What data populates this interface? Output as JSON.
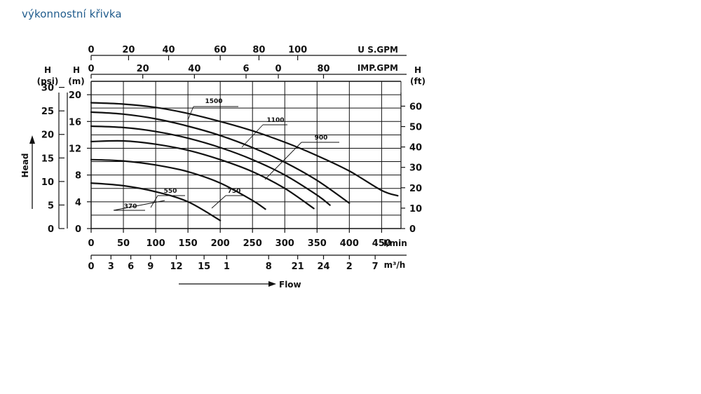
{
  "page": {
    "title": "výkonnostní křivka"
  },
  "colors": {
    "title": "#1f5b8c",
    "ink": "#111111",
    "grid": "#111111"
  },
  "chart_data": {
    "type": "line",
    "title": "",
    "grid": true,
    "x_axes": {
      "lmin": {
        "unit": "l/min",
        "range": [
          0,
          480
        ],
        "ticks": [
          0,
          50,
          100,
          150,
          200,
          250,
          300,
          350,
          400,
          450
        ],
        "tick_labels": [
          "0",
          "50",
          "100",
          "150",
          "200",
          "250",
          "300",
          "350",
          "400",
          "450"
        ]
      },
      "m3h": {
        "unit": "m³/h",
        "ticks": [
          0,
          30.7,
          61.5,
          92,
          132,
          175,
          210,
          275,
          320,
          360,
          400,
          440
        ],
        "tick_labels": [
          "0",
          "3",
          "6",
          "9",
          "12",
          "15",
          "1",
          "8",
          "21",
          "24",
          "2",
          "7"
        ]
      },
      "usgpm": {
        "unit": "U S.GPM",
        "ticks": [
          0,
          58,
          120,
          200,
          260,
          320
        ],
        "tick_labels": [
          "0",
          "20",
          "40",
          "60",
          "80",
          "100"
        ]
      },
      "impgpm": {
        "unit": "IMP.GPM",
        "ticks": [
          0,
          80,
          160,
          240,
          290,
          360
        ],
        "tick_labels": [
          "0",
          "20",
          "40",
          "6",
          "0",
          "80"
        ]
      }
    },
    "y_axes": {
      "psi": {
        "label": "H",
        "unit": "(psi)",
        "ticks": [
          0,
          5,
          10,
          15,
          20,
          25,
          30
        ],
        "tick_labels": [
          "0",
          "5",
          "10",
          "15",
          "20",
          "25",
          "30"
        ]
      },
      "m": {
        "label": "H",
        "unit": "(m)",
        "range": [
          0,
          22
        ],
        "ticks": [
          0,
          4,
          8,
          12,
          16,
          20
        ],
        "tick_labels": [
          "0",
          "4",
          "8",
          "12",
          "16",
          "20"
        ]
      },
      "ft": {
        "label": "H",
        "unit": "(ft)",
        "ticks": [
          0,
          10,
          20,
          30,
          40,
          50,
          60
        ],
        "tick_labels": [
          "0",
          "10",
          "20",
          "30",
          "40",
          "50",
          "60"
        ]
      }
    },
    "head_label": "Head",
    "flow_label": "Flow",
    "series": [
      {
        "name": "1500",
        "x": [
          0,
          50,
          100,
          150,
          200,
          250,
          300,
          350,
          400,
          450,
          475
        ],
        "y": [
          18.8,
          18.6,
          18.1,
          17.2,
          16.0,
          14.6,
          12.9,
          10.9,
          8.6,
          5.7,
          4.9
        ]
      },
      {
        "name": "1100",
        "x": [
          0,
          50,
          100,
          150,
          200,
          250,
          300,
          350,
          400
        ],
        "y": [
          17.4,
          17.1,
          16.4,
          15.3,
          13.9,
          12.1,
          9.9,
          7.2,
          3.8
        ]
      },
      {
        "name": "900",
        "x": [
          0,
          50,
          100,
          150,
          200,
          250,
          300,
          350,
          370
        ],
        "y": [
          15.3,
          15.1,
          14.5,
          13.5,
          12.1,
          10.3,
          8.0,
          5.0,
          3.5
        ]
      },
      {
        "name": "750",
        "x": [
          0,
          50,
          100,
          150,
          200,
          250,
          300,
          345
        ],
        "y": [
          13.0,
          13.1,
          12.6,
          11.7,
          10.3,
          8.5,
          6.0,
          3.0
        ]
      },
      {
        "name": "550",
        "x": [
          0,
          50,
          100,
          150,
          200,
          250,
          270
        ],
        "y": [
          10.3,
          10.1,
          9.5,
          8.5,
          6.8,
          4.2,
          2.9
        ]
      },
      {
        "name": "370",
        "x": [
          0,
          50,
          100,
          150,
          200
        ],
        "y": [
          6.8,
          6.4,
          5.5,
          4.0,
          1.2
        ]
      }
    ]
  }
}
